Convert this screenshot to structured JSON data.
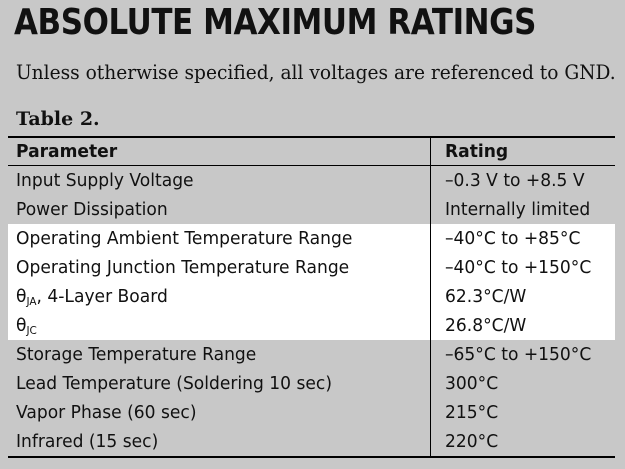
{
  "document": {
    "heading": "ABSOLUTE MAXIMUM RATINGS",
    "intro": "Unless otherwise specified, all voltages are referenced to GND.",
    "table_caption": "Table 2.",
    "table": {
      "headers": {
        "parameter": "Parameter",
        "rating": "Rating"
      },
      "rows": [
        {
          "parameter": "Input Supply Voltage",
          "rating": "–0.3 V to +8.5 V",
          "highlighted": false
        },
        {
          "parameter": "Power Dissipation",
          "rating": "Internally limited",
          "highlighted": false
        },
        {
          "parameter": "Operating Ambient Temperature Range",
          "rating": "–40°C to +85°C",
          "highlighted": true
        },
        {
          "parameter": "Operating Junction Temperature Range",
          "rating": "–40°C to +150°C",
          "highlighted": true
        },
        {
          "parameter_symbol": "θ",
          "parameter_sub": "JA",
          "parameter_rest": ", 4-Layer Board",
          "rating": "62.3°C/W",
          "highlighted": true
        },
        {
          "parameter_symbol": "θ",
          "parameter_sub": "JC",
          "parameter_rest": "",
          "rating": "26.8°C/W",
          "highlighted": true
        },
        {
          "parameter": "Storage Temperature Range",
          "rating": "–65°C to +150°C",
          "highlighted": false
        },
        {
          "parameter": "Lead Temperature (Soldering 10 sec)",
          "rating": "300°C",
          "highlighted": false
        },
        {
          "parameter": "Vapor Phase (60 sec)",
          "rating": "215°C",
          "highlighted": false
        },
        {
          "parameter": "Infrared (15 sec)",
          "rating": "220°C",
          "highlighted": false
        }
      ]
    }
  },
  "colors": {
    "page_background": "#c8c8c8",
    "highlight_background": "#ffffff",
    "text": "#111111",
    "rule": "#000000"
  }
}
